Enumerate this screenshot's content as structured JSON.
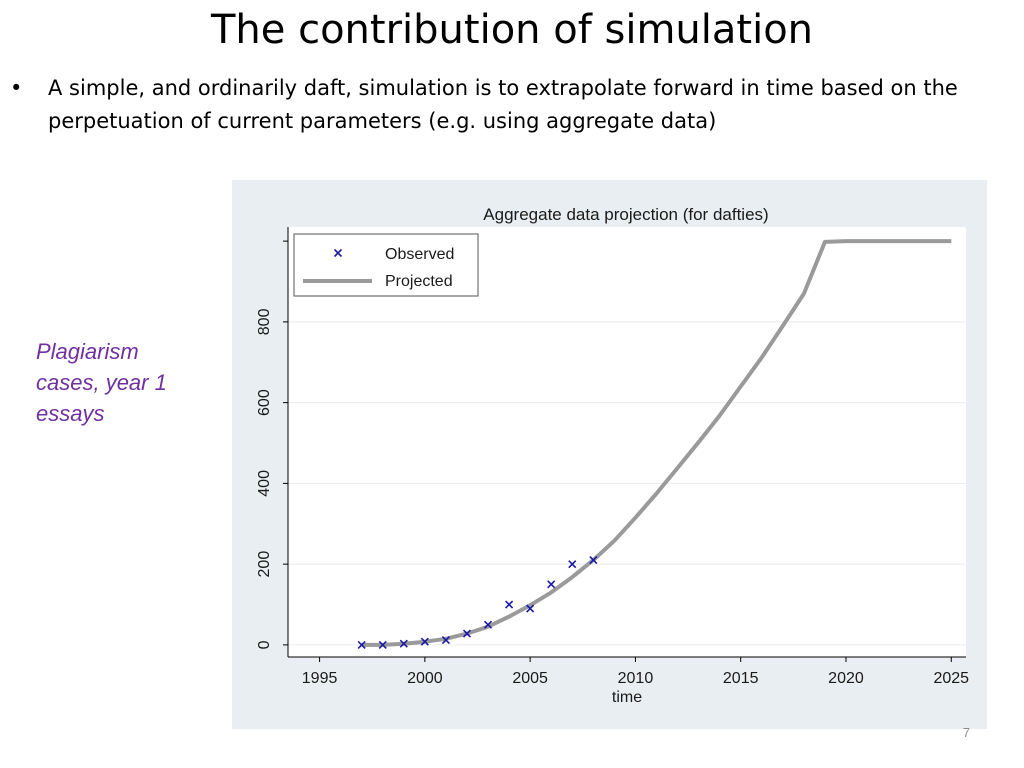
{
  "slide": {
    "title": "The contribution of simulation",
    "bullet_symbol": "•",
    "bullet_text": "A simple, and ordinarily daft, simulation is to extrapolate forward in time based on the perpetuation of current parameters (e.g. using aggregate data)",
    "side_note": "Plagiarism cases, year 1 essays",
    "page_number": "7"
  },
  "colors": {
    "panel_bg": "#e8eef1",
    "plot_bg": "#ffffff",
    "observed_marker": "#1a1aa6",
    "projected_line": "#9a9a9a",
    "gridline": "#e6ebee",
    "side_note_text": "#7030a0"
  },
  "chart_data": {
    "type": "line",
    "title": "Aggregate data projection (for dafties)",
    "xlabel": "time",
    "ylabel": "",
    "xlim": [
      1993.5,
      2025.7
    ],
    "ylim": [
      -30,
      1035
    ],
    "x_ticks": [
      1995,
      2000,
      2005,
      2010,
      2015,
      2020,
      2025
    ],
    "y_ticks": [
      0,
      200,
      400,
      600,
      800
    ],
    "grid": true,
    "legend_position": "top-left",
    "series": [
      {
        "name": "Observed",
        "kind": "scatter",
        "marker": "x",
        "x": [
          1997,
          1998,
          1999,
          2000,
          2001,
          2002,
          2003,
          2004,
          2005,
          2006,
          2007,
          2008
        ],
        "y": [
          0,
          0,
          3,
          8,
          12,
          28,
          50,
          100,
          90,
          150,
          200,
          210
        ]
      },
      {
        "name": "Projected",
        "kind": "line",
        "x": [
          1997,
          1998,
          1999,
          2000,
          2001,
          2002,
          2003,
          2004,
          2005,
          2006,
          2007,
          2008,
          2009,
          2010,
          2011,
          2012,
          2013,
          2014,
          2015,
          2016,
          2017,
          2018,
          2019,
          2020,
          2021,
          2022,
          2023,
          2024,
          2025
        ],
        "y": [
          0,
          0,
          3,
          8,
          15,
          28,
          45,
          70,
          98,
          130,
          168,
          210,
          258,
          315,
          375,
          438,
          502,
          568,
          640,
          712,
          790,
          870,
          998,
          1000,
          1000,
          1000,
          1000,
          1000,
          1000
        ]
      }
    ]
  }
}
